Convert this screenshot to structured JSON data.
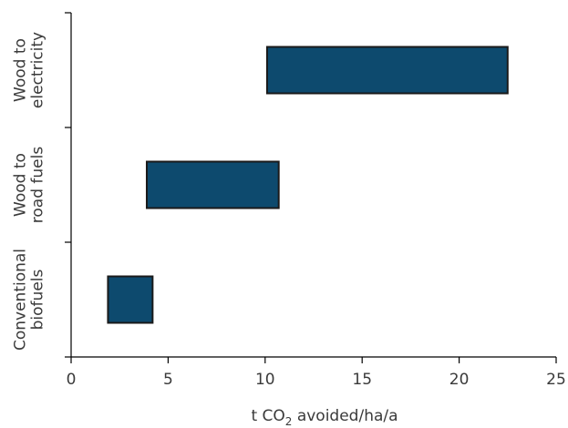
{
  "chart_data": {
    "type": "bar",
    "orientation": "horizontal",
    "style": "floating-range",
    "categories": [
      [
        "Wood to",
        "electricity"
      ],
      [
        "Wood to",
        "road fuels"
      ],
      [
        "Conventional",
        "biofuels"
      ]
    ],
    "ranges": [
      [
        10.1,
        22.5
      ],
      [
        3.9,
        10.7
      ],
      [
        1.9,
        4.2
      ]
    ],
    "xlabel": {
      "prefix": "t CO",
      "subscript": "2",
      "suffix": " avoided/ha/a"
    },
    "ylabel": "",
    "xlim": [
      0,
      25
    ],
    "xticks": [
      0,
      5,
      10,
      15,
      20,
      25
    ],
    "grid": false,
    "legend": "none",
    "colors": {
      "bar_fill": "#0d4a6e",
      "bar_stroke": "#1a1a1a",
      "axis": "#000000",
      "text": "#3a3a3a"
    }
  }
}
